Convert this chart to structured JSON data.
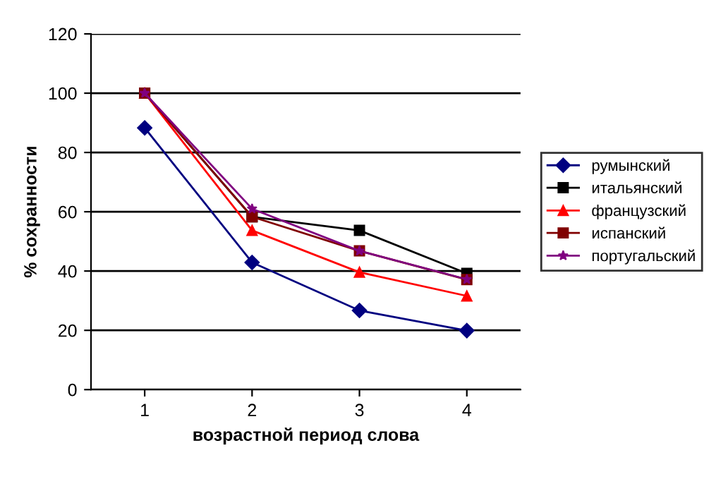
{
  "chart_data": {
    "type": "line",
    "xlabel": "возрастной период слова",
    "ylabel": "% сохранности",
    "categories": [
      "1",
      "2",
      "3",
      "4"
    ],
    "series": [
      {
        "name": "румынский",
        "color": "#000080",
        "marker": "diamond",
        "values": [
          88.3,
          42.9,
          26.7,
          19.9
        ]
      },
      {
        "name": "итальянский",
        "color": "#000000",
        "marker": "square",
        "values": [
          100,
          58.3,
          53.7,
          39.2
        ]
      },
      {
        "name": "французский",
        "color": "#ff0000",
        "marker": "triangle",
        "values": [
          100,
          53.7,
          39.6,
          31.6
        ]
      },
      {
        "name": "испанский",
        "color": "#800000",
        "marker": "square",
        "values": [
          100,
          58.3,
          46.8,
          37.1
        ]
      },
      {
        "name": "португальский",
        "color": "#800080",
        "marker": "star",
        "values": [
          100,
          61,
          46.8,
          37.2
        ]
      }
    ],
    "ylim": [
      0,
      120
    ],
    "yticks": [
      0,
      20,
      40,
      60,
      80,
      100,
      120
    ],
    "grid": "y",
    "legend": "right",
    "line_style": "solid"
  }
}
